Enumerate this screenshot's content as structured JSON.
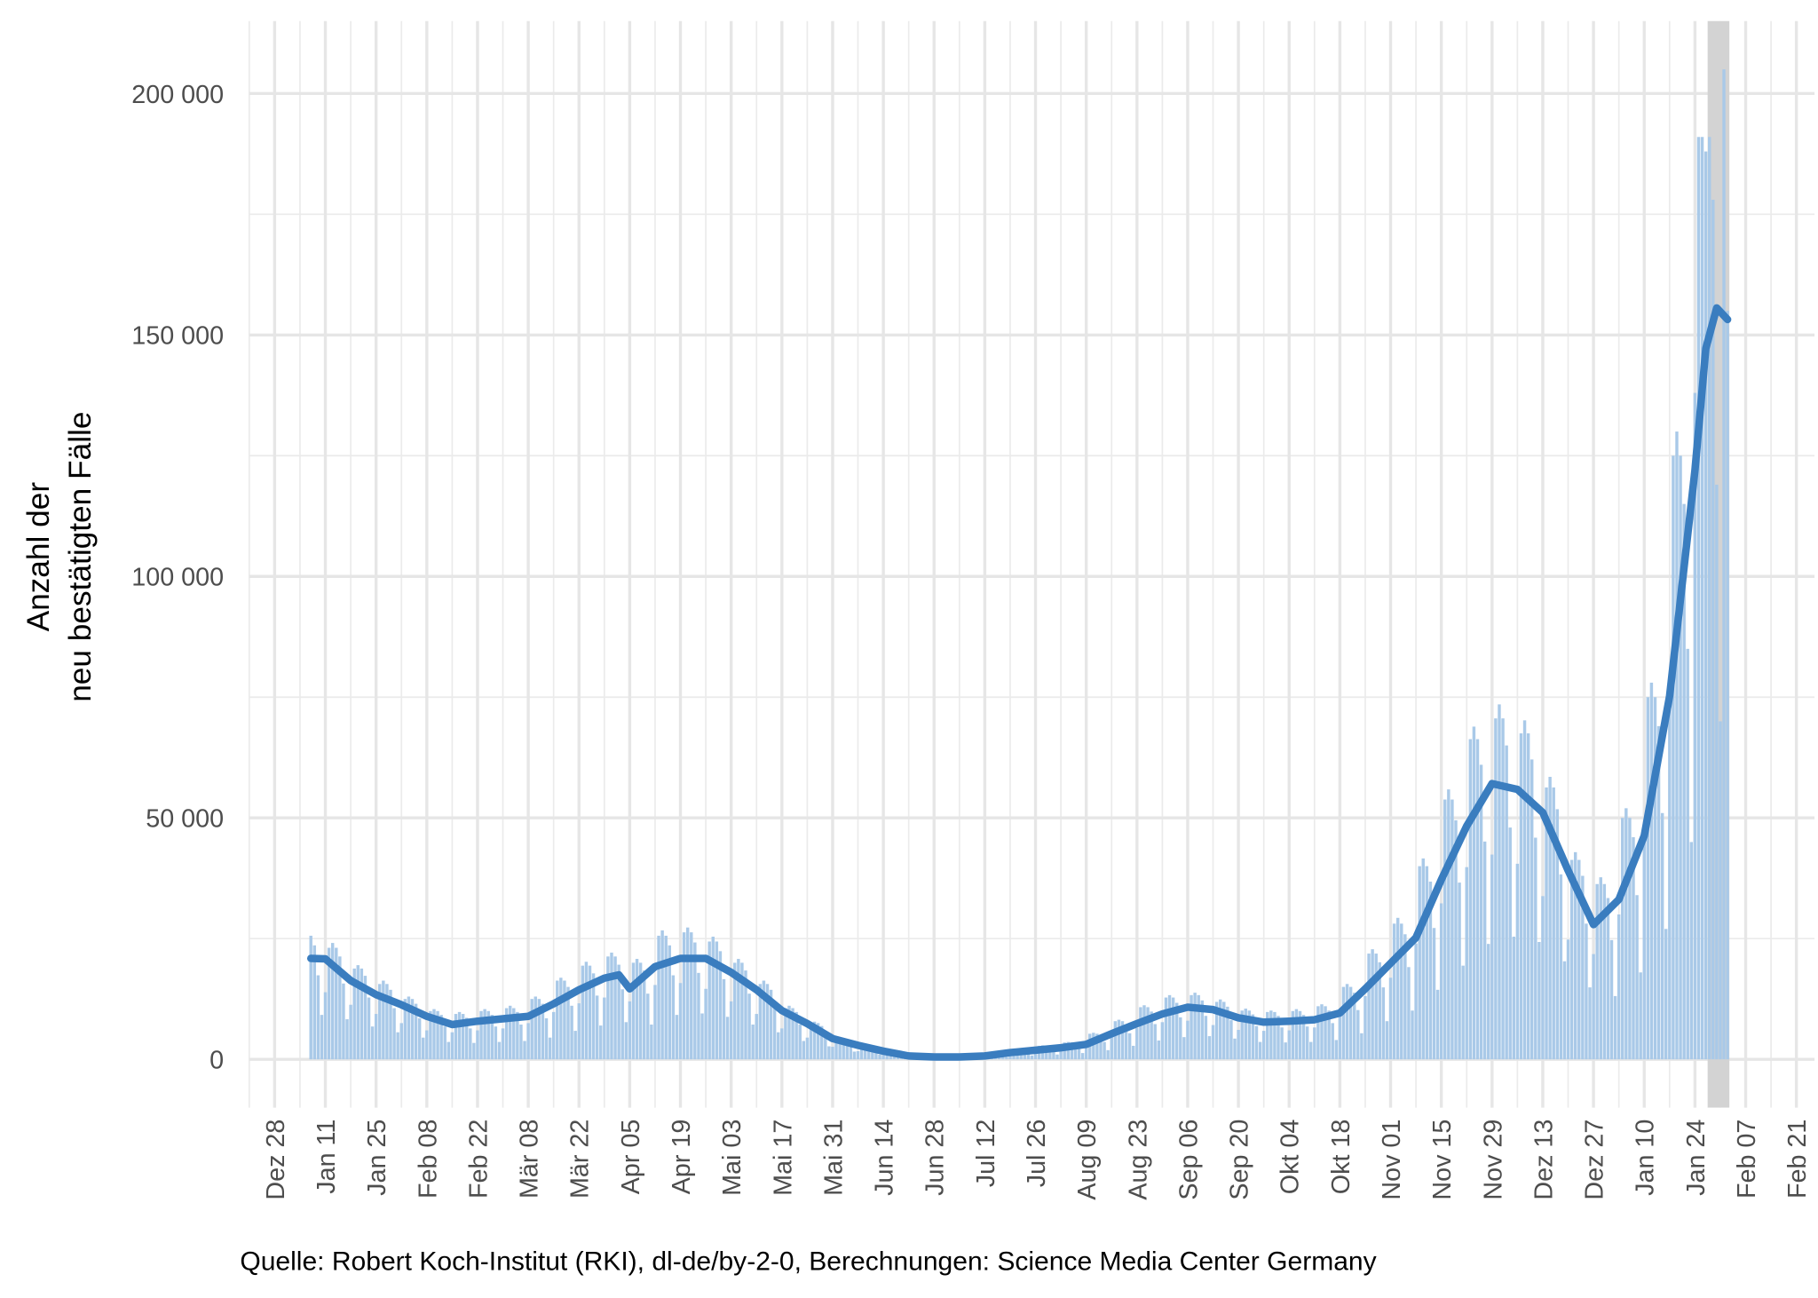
{
  "chart_data": {
    "type": "bar",
    "y_label": [
      "Anzahl der",
      "neu bestätigten Fälle"
    ],
    "caption": "Quelle: Robert Koch-Institut (RKI), dl-de/by-2-0, Berechnungen: Science Media Center Germany",
    "xlim": [
      -7,
      425
    ],
    "ylim": [
      -10000,
      215000
    ],
    "grid": true,
    "yticks": [
      0,
      {
        "value": 50000,
        "label": "50 000"
      },
      {
        "value": 100000,
        "label": "100 000"
      },
      {
        "value": 150000,
        "label": "150 000"
      },
      {
        "value": 200000,
        "label": "200 000"
      }
    ],
    "yticks_minor": [
      25000,
      75000,
      125000,
      175000
    ],
    "xticks": [
      {
        "value": 0,
        "label": "Dez 28"
      },
      {
        "value": 14,
        "label": "Jan 11"
      },
      {
        "value": 28,
        "label": "Jan 25"
      },
      {
        "value": 42,
        "label": "Feb 08"
      },
      {
        "value": 56,
        "label": "Feb 22"
      },
      {
        "value": 70,
        "label": "Mär 08"
      },
      {
        "value": 84,
        "label": "Mär 22"
      },
      {
        "value": 98,
        "label": "Apr 05"
      },
      {
        "value": 112,
        "label": "Apr 19"
      },
      {
        "value": 126,
        "label": "Mai 03"
      },
      {
        "value": 140,
        "label": "Mai 17"
      },
      {
        "value": 154,
        "label": "Mai 31"
      },
      {
        "value": 168,
        "label": "Jun 14"
      },
      {
        "value": 182,
        "label": "Jun 28"
      },
      {
        "value": 196,
        "label": "Jul 12"
      },
      {
        "value": 210,
        "label": "Jul 26"
      },
      {
        "value": 224,
        "label": "Aug 09"
      },
      {
        "value": 238,
        "label": "Aug 23"
      },
      {
        "value": 252,
        "label": "Sep 06"
      },
      {
        "value": 266,
        "label": "Sep 20"
      },
      {
        "value": 280,
        "label": "Okt 04"
      },
      {
        "value": 294,
        "label": "Okt 18"
      },
      {
        "value": 308,
        "label": "Nov 01"
      },
      {
        "value": 322,
        "label": "Nov 15"
      },
      {
        "value": 336,
        "label": "Nov 29"
      },
      {
        "value": 350,
        "label": "Dez 13"
      },
      {
        "value": 364,
        "label": "Dez 27"
      },
      {
        "value": 378,
        "label": "Jan 10"
      },
      {
        "value": 392,
        "label": "Jan 24"
      },
      {
        "value": 406,
        "label": "Feb 07"
      },
      {
        "value": 420,
        "label": "Feb 21"
      }
    ],
    "xticks_minor": [
      -7,
      7,
      21,
      35,
      49,
      63,
      77,
      91,
      105,
      119,
      133,
      147,
      161,
      175,
      189,
      203,
      217,
      231,
      245,
      259,
      273,
      287,
      301,
      315,
      329,
      343,
      357,
      371,
      385,
      399,
      413
    ],
    "shaded_range": [
      396,
      401
    ],
    "shade_color": "#d3d3d3",
    "bars": {
      "color": "#a9c9e8",
      "x": [
        10,
        11,
        12,
        13,
        14,
        15,
        16,
        17,
        18,
        19,
        20,
        21,
        22,
        23,
        24,
        25,
        26,
        27,
        28,
        29,
        30,
        31,
        32,
        33,
        34,
        35,
        36,
        37,
        38,
        39,
        40,
        41,
        42,
        43,
        44,
        45,
        46,
        47,
        48,
        49,
        50,
        51,
        52,
        53,
        54,
        55,
        56,
        57,
        58,
        59,
        60,
        61,
        62,
        63,
        64,
        65,
        66,
        67,
        68,
        69,
        70,
        71,
        72,
        73,
        74,
        75,
        76,
        77,
        78,
        79,
        80,
        81,
        82,
        83,
        84,
        85,
        86,
        87,
        88,
        89,
        90,
        91,
        92,
        93,
        94,
        95,
        96,
        97,
        98,
        99,
        100,
        101,
        102,
        103,
        104,
        105,
        106,
        107,
        108,
        109,
        110,
        111,
        112,
        113,
        114,
        115,
        116,
        117,
        118,
        119,
        120,
        121,
        122,
        123,
        124,
        125,
        126,
        127,
        128,
        129,
        130,
        131,
        132,
        133,
        134,
        135,
        136,
        137,
        138,
        139,
        140,
        141,
        142,
        143,
        144,
        145,
        146,
        147,
        148,
        149,
        150,
        151,
        152,
        153,
        154,
        155,
        156,
        157,
        158,
        159,
        160,
        161,
        162,
        163,
        164,
        165,
        166,
        167,
        168,
        169,
        170,
        171,
        172,
        173,
        174,
        175,
        176,
        177,
        178,
        179,
        180,
        181,
        182,
        183,
        184,
        185,
        186,
        187,
        188,
        189,
        190,
        191,
        192,
        193,
        194,
        195,
        196,
        197,
        198,
        199,
        200,
        201,
        202,
        203,
        204,
        205,
        206,
        207,
        208,
        209,
        210,
        211,
        212,
        213,
        214,
        215,
        216,
        217,
        218,
        219,
        220,
        221,
        222,
        223,
        224,
        225,
        226,
        227,
        228,
        229,
        230,
        231,
        232,
        233,
        234,
        235,
        236,
        237,
        238,
        239,
        240,
        241,
        242,
        243,
        244,
        245,
        246,
        247,
        248,
        249,
        250,
        251,
        252,
        253,
        254,
        255,
        256,
        257,
        258,
        259,
        260,
        261,
        262,
        263,
        264,
        265,
        266,
        267,
        268,
        269,
        270,
        271,
        272,
        273,
        274,
        275,
        276,
        277,
        278,
        279,
        280,
        281,
        282,
        283,
        284,
        285,
        286,
        287,
        288,
        289,
        290,
        291,
        292,
        293,
        294,
        295,
        296,
        297,
        298,
        299,
        300,
        301,
        302,
        303,
        304,
        305,
        306,
        307,
        308,
        309,
        310,
        311,
        312,
        313,
        314,
        315,
        316,
        317,
        318,
        319,
        320,
        321,
        322,
        323,
        324,
        325,
        326,
        327,
        328,
        329,
        330,
        331,
        332,
        333,
        334,
        335,
        336,
        337,
        338,
        339,
        340,
        341,
        342,
        343,
        344,
        345,
        346,
        347,
        348,
        349,
        350,
        351,
        352,
        353,
        354,
        355,
        356,
        357,
        358,
        359,
        360,
        361,
        362,
        363,
        364,
        365,
        366,
        367,
        368,
        369,
        370,
        371,
        372,
        373,
        374,
        375,
        376,
        377,
        378,
        379,
        380,
        381,
        382,
        383,
        384,
        385,
        386,
        387,
        388,
        389,
        390,
        391,
        392,
        393,
        394,
        395,
        396,
        397,
        398,
        399,
        400,
        401
      ],
      "values": [
        25600,
        23600,
        17400,
        9200,
        13900,
        23100,
        24100,
        23100,
        21300,
        15700,
        8300,
        11300,
        18800,
        19500,
        18800,
        17300,
        12800,
        6800,
        9400,
        15600,
        16300,
        15600,
        14400,
        10600,
        5600,
        7500,
        12500,
        13000,
        12500,
        11500,
        8500,
        4500,
        6000,
        10000,
        10400,
        10000,
        9200,
        6800,
        3600,
        5600,
        9400,
        9800,
        9400,
        8600,
        6400,
        3400,
        6000,
        10000,
        10400,
        10000,
        9200,
        6800,
        3600,
        6400,
        10600,
        11100,
        10600,
        9800,
        7200,
        3800,
        7500,
        12500,
        13000,
        12500,
        11500,
        8500,
        4500,
        9800,
        16300,
        16900,
        16300,
        15000,
        11100,
        5900,
        11600,
        19400,
        20200,
        19400,
        17800,
        13200,
        7000,
        12800,
        21300,
        22100,
        21300,
        19600,
        14500,
        7700,
        12000,
        20000,
        20800,
        20000,
        18400,
        13600,
        7200,
        15400,
        25600,
        26700,
        25600,
        23600,
        17400,
        9200,
        15800,
        26300,
        27300,
        26300,
        24200,
        17900,
        9500,
        14600,
        24400,
        25400,
        24400,
        22400,
        16600,
        8800,
        12000,
        20000,
        20800,
        20000,
        18400,
        13600,
        7200,
        9400,
        15600,
        16300,
        15600,
        14400,
        10600,
        5600,
        6400,
        10600,
        11100,
        10600,
        9800,
        7200,
        3800,
        4500,
        7500,
        7800,
        7500,
        6900,
        5100,
        2700,
        2600,
        4400,
        4600,
        4400,
        4000,
        3000,
        1600,
        1700,
        2900,
        3000,
        2900,
        2600,
        2000,
        1000,
        900,
        1500,
        1600,
        1500,
        1400,
        1000,
        500,
        500,
        800,
        800,
        800,
        700,
        500,
        300,
        400,
        600,
        700,
        600,
        600,
        400,
        200,
        500,
        800,
        800,
        800,
        700,
        500,
        300,
        800,
        1300,
        1300,
        1300,
        1200,
        900,
        500,
        1300,
        2100,
        2200,
        2100,
        2000,
        1400,
        800,
        1700,
        2800,
        2900,
        2800,
        2500,
        1900,
        1000,
        2100,
        3500,
        3600,
        3500,
        3200,
        2400,
        1300,
        3200,
        5300,
        5500,
        5300,
        4800,
        3600,
        1900,
        4700,
        7900,
        8200,
        7900,
        7200,
        5400,
        2800,
        6500,
        10800,
        11200,
        10800,
        9900,
        7300,
        3900,
        7700,
        12800,
        13300,
        12800,
        11700,
        8700,
        4600,
        8000,
        13300,
        13800,
        13300,
        12200,
        9000,
        4800,
        7100,
        11900,
        12400,
        11900,
        10900,
        8100,
        4300,
        6100,
        10100,
        10500,
        10100,
        9300,
        6900,
        3600,
        5900,
        9800,
        10100,
        9800,
        9000,
        6600,
        3500,
        6000,
        10000,
        10400,
        10000,
        9200,
        6800,
        3600,
        6600,
        11000,
        11400,
        11000,
        10100,
        7500,
        4000,
        9000,
        15000,
        15600,
        15000,
        13800,
        10200,
        5400,
        13100,
        21900,
        22800,
        21900,
        20100,
        14900,
        7900,
        16900,
        28100,
        29300,
        28100,
        25900,
        19100,
        10100,
        24000,
        40000,
        41600,
        40000,
        36800,
        27200,
        14400,
        32300,
        53800,
        55900,
        53800,
        49500,
        36600,
        19400,
        39800,
        66300,
        68900,
        66300,
        61000,
        45100,
        23900,
        42400,
        70600,
        73500,
        70600,
        65000,
        48000,
        25400,
        40500,
        67500,
        70200,
        67500,
        62100,
        45900,
        24300,
        33800,
        56300,
        58500,
        56300,
        51800,
        38300,
        20300,
        24800,
        41300,
        42900,
        41300,
        38000,
        28100,
        14900,
        21800,
        36300,
        37700,
        36300,
        33400,
        24700,
        13100,
        30000,
        50000,
        52000,
        50000,
        46000,
        34000,
        18000,
        45000,
        75000,
        78000,
        75000,
        69000,
        51000,
        27000,
        75000,
        125000,
        130000,
        125000,
        115000,
        85000,
        45000,
        138000,
        191000,
        191000,
        188000,
        191000,
        178000,
        119000,
        70000,
        205000,
        155000
      ]
    },
    "line": {
      "color": "#3a7dbf",
      "x": [
        10,
        14,
        21,
        28,
        35,
        42,
        49,
        56,
        63,
        70,
        77,
        84,
        91,
        95,
        98,
        105,
        112,
        119,
        126,
        133,
        140,
        147,
        154,
        161,
        168,
        175,
        182,
        189,
        196,
        203,
        210,
        217,
        224,
        231,
        238,
        245,
        252,
        259,
        266,
        273,
        280,
        287,
        294,
        301,
        308,
        315,
        322,
        329,
        336,
        343,
        350,
        357,
        364,
        371,
        378,
        385,
        392,
        395,
        398,
        401
      ],
      "values": [
        20900,
        20800,
        16300,
        13400,
        11300,
        8900,
        7200,
        7900,
        8400,
        8900,
        11500,
        14400,
        16800,
        17500,
        14600,
        19200,
        20900,
        20900,
        18000,
        14400,
        10100,
        7400,
        4300,
        2900,
        1700,
        700,
        500,
        500,
        700,
        1400,
        1900,
        2400,
        3100,
        5300,
        7400,
        9400,
        10800,
        10300,
        8600,
        7700,
        7900,
        8200,
        9600,
        14600,
        19900,
        25200,
        37200,
        48300,
        57100,
        55900,
        51100,
        39100,
        27900,
        33100,
        46300,
        75200,
        122000,
        147200,
        155600,
        153200
      ]
    }
  }
}
